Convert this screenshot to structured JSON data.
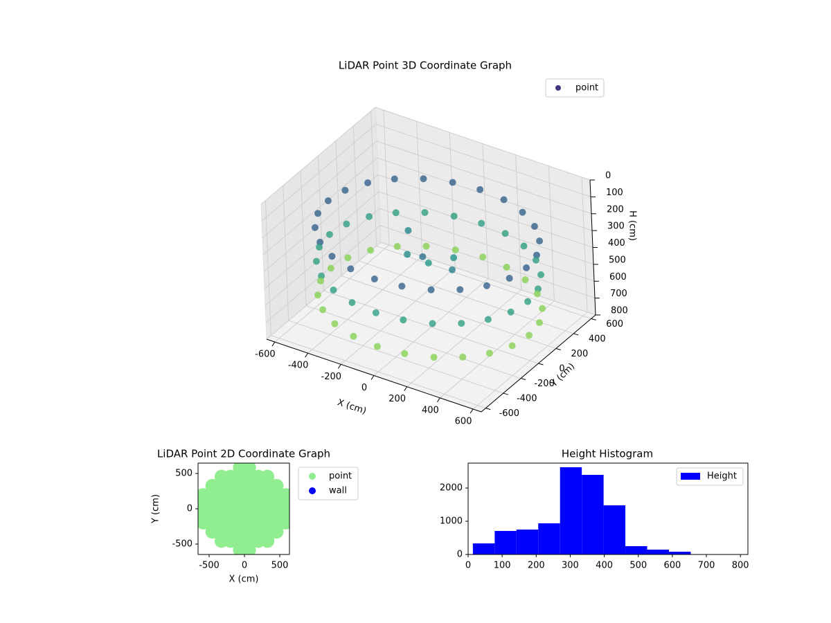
{
  "chart_data": [
    {
      "type": "scatter3d",
      "title": "LiDAR Point 3D Coordinate Graph",
      "xlabel": "X (cm)",
      "ylabel": "Y (cm)",
      "zlabel": "H (cm)",
      "xlim": [
        -650,
        650
      ],
      "ylim": [
        -650,
        650
      ],
      "zlim": [
        0,
        800
      ],
      "z_inverted": true,
      "xticks": [
        -600,
        -400,
        -200,
        0,
        200,
        400,
        600
      ],
      "yticks": [
        -600,
        -400,
        -200,
        0,
        200,
        400,
        600
      ],
      "zticks": [
        0,
        100,
        200,
        300,
        400,
        500,
        600,
        700,
        800
      ],
      "colormap": "viridis",
      "legend": "upper right",
      "grid": true,
      "series": [
        {
          "name": "point",
          "color": "#46337e",
          "x": [
            600,
            580,
            520,
            424,
            300,
            155,
            0,
            -155,
            -300,
            -424,
            -520,
            -580,
            -600,
            -580,
            -520,
            -424,
            -300,
            -155,
            0,
            155,
            300,
            424,
            520,
            580,
            600,
            580,
            520,
            424,
            300,
            155,
            0,
            -155,
            -300,
            -424,
            -520,
            -580,
            -600,
            -580,
            -520,
            -424,
            -300,
            -155,
            0,
            155,
            300,
            424,
            520,
            580,
            600,
            580,
            520,
            424,
            300,
            155,
            0,
            -155,
            -300,
            -424,
            -520,
            -580,
            -600,
            -580,
            -520,
            -424,
            -300,
            -155,
            0,
            155,
            300,
            424,
            520,
            580,
            0,
            100,
            -100,
            200,
            -200,
            50
          ],
          "y": [
            0,
            155,
            300,
            424,
            520,
            580,
            600,
            580,
            520,
            424,
            300,
            155,
            0,
            -155,
            -300,
            -424,
            -520,
            -580,
            -600,
            -580,
            -520,
            -424,
            -300,
            -155,
            0,
            155,
            300,
            424,
            520,
            580,
            600,
            580,
            520,
            424,
            300,
            155,
            0,
            -155,
            -300,
            -424,
            -520,
            -580,
            -600,
            -580,
            -520,
            -424,
            -300,
            -155,
            0,
            155,
            300,
            424,
            520,
            580,
            600,
            580,
            520,
            424,
            300,
            155,
            0,
            -155,
            -300,
            -424,
            -520,
            -580,
            -600,
            -580,
            -520,
            -424,
            -300,
            -155,
            0,
            100,
            -50,
            -100,
            150,
            -150
          ],
          "z": [
            250,
            250,
            250,
            250,
            250,
            250,
            250,
            250,
            250,
            250,
            250,
            250,
            250,
            250,
            250,
            250,
            250,
            250,
            250,
            250,
            250,
            250,
            250,
            250,
            450,
            450,
            450,
            450,
            450,
            450,
            450,
            450,
            450,
            450,
            450,
            450,
            450,
            450,
            450,
            450,
            450,
            450,
            450,
            450,
            450,
            450,
            450,
            450,
            650,
            650,
            650,
            650,
            650,
            650,
            650,
            650,
            650,
            650,
            650,
            650,
            650,
            650,
            650,
            650,
            650,
            650,
            650,
            650,
            650,
            650,
            650,
            650,
            420,
            400,
            380,
            350,
            360,
            300
          ]
        }
      ]
    },
    {
      "type": "scatter",
      "title": "LiDAR Point 2D Coordinate Graph",
      "xlabel": "X (cm)",
      "ylabel": "Y (cm)",
      "xlim": [
        -657,
        637
      ],
      "ylim": [
        -647,
        647
      ],
      "xticks": [
        -500,
        0,
        500
      ],
      "yticks": [
        -500,
        0,
        500
      ],
      "legend": "outside right",
      "series": [
        {
          "name": "point",
          "color": "#90ee90",
          "x": [
            -585,
            -585,
            -585,
            -585,
            585,
            585,
            585,
            585,
            -455,
            -455,
            -455,
            -455,
            -455,
            -455,
            455,
            455,
            455,
            455,
            455,
            455,
            -325,
            -325,
            -325,
            -325,
            -325,
            -325,
            -325,
            -325,
            325,
            325,
            325,
            325,
            325,
            325,
            325,
            325,
            -195,
            -195,
            -195,
            -195,
            -195,
            -195,
            -195,
            -195,
            195,
            195,
            195,
            195,
            195,
            195,
            195,
            195,
            -65,
            -65,
            -65,
            -65,
            -65,
            -65,
            -65,
            -65,
            -65,
            -65,
            65,
            65,
            65,
            65,
            65,
            65,
            65,
            65,
            65,
            65
          ],
          "y": [
            -195,
            -65,
            65,
            195,
            -195,
            -65,
            65,
            195,
            -325,
            -195,
            -65,
            65,
            195,
            325,
            -325,
            -195,
            -65,
            65,
            195,
            325,
            -455,
            -325,
            -195,
            -65,
            65,
            195,
            325,
            455,
            -455,
            -325,
            -195,
            -65,
            65,
            195,
            325,
            455,
            -455,
            -325,
            -195,
            -65,
            65,
            195,
            325,
            455,
            -455,
            -325,
            -195,
            -65,
            65,
            195,
            325,
            455,
            -585,
            -455,
            -325,
            -195,
            -65,
            65,
            195,
            325,
            455,
            585,
            -585,
            -455,
            -325,
            -195,
            -65,
            65,
            195,
            325,
            455,
            585
          ]
        },
        {
          "name": "wall",
          "color": "#0000ff",
          "x": [],
          "y": []
        }
      ]
    },
    {
      "type": "histogram",
      "title": "Height Histogram",
      "bins": [
        14,
        78,
        142,
        206,
        270,
        334,
        398,
        462,
        526,
        590,
        654,
        718,
        782
      ],
      "counts": [
        333,
        708,
        750,
        938,
        2625,
        2396,
        1479,
        250,
        146,
        83,
        2,
        2
      ],
      "xlim": [
        0,
        822
      ],
      "ylim": [
        0,
        2750
      ],
      "xticks": [
        0,
        100,
        200,
        300,
        400,
        500,
        600,
        700,
        800
      ],
      "yticks": [
        0,
        1000,
        2000
      ],
      "legend": "upper right",
      "series": [
        {
          "name": "Height",
          "color": "#0000ff"
        }
      ]
    }
  ]
}
